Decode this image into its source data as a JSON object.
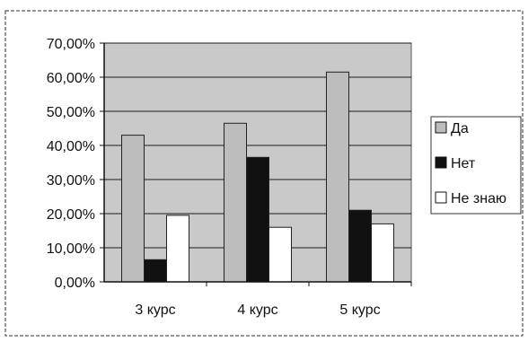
{
  "colors": {
    "plot_bg": "#c9c9c9",
    "da": "#bdbdbd",
    "net": "#111111",
    "ne_znayu": "#ffffff",
    "grid": "#1a1a1a"
  },
  "chart_data": {
    "type": "bar",
    "categories": [
      "3 курс",
      "4 курс",
      "5 курс"
    ],
    "series": [
      {
        "name": "Да",
        "values": [
          43.0,
          46.5,
          61.5
        ]
      },
      {
        "name": "Нет",
        "values": [
          6.5,
          36.5,
          21.0
        ]
      },
      {
        "name": "Не знаю",
        "values": [
          19.5,
          16.0,
          17.0
        ]
      }
    ],
    "yticks": [
      "0,00%",
      "10,00%",
      "20,00%",
      "30,00%",
      "40,00%",
      "50,00%",
      "60,00%",
      "70,00%"
    ],
    "ylim": [
      0,
      70
    ],
    "grid": true,
    "legend": "right"
  }
}
